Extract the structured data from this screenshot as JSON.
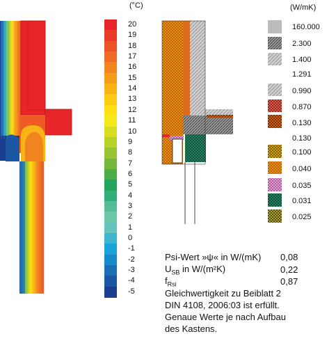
{
  "thermal": {
    "unit": "(°C)",
    "ticks": [
      "20",
      "19",
      "18",
      "17",
      "16",
      "15",
      "14",
      "13",
      "12",
      "11",
      "10",
      "9",
      "8",
      "7",
      "6",
      "5",
      "4",
      "3",
      "2",
      "1",
      "0",
      "-1",
      "-2",
      "-3",
      "-4",
      "-5"
    ],
    "colors": [
      "#e8262a",
      "#ea3b28",
      "#ec5226",
      "#ef6a24",
      "#f28420",
      "#f59c1b",
      "#f8b416",
      "#fbcb12",
      "#fde112",
      "#f2e81a",
      "#d8df22",
      "#b8d22a",
      "#97c532",
      "#73b83a",
      "#4dae48",
      "#1fa65a",
      "#32ad78",
      "#55bc95",
      "#6cc6a8",
      "#66c3bd",
      "#3eb6cf",
      "#1aa3d6",
      "#198ac9",
      "#1b6fb6",
      "#1c57a3",
      "#1b3f8e"
    ]
  },
  "materials": {
    "unit": "(W/mK)",
    "items": [
      {
        "value": "160.000",
        "fill": "#bcbcbc",
        "pattern": "solid"
      },
      {
        "value": "2.300",
        "fill": "#8c8c8c",
        "pattern": "hatch"
      },
      {
        "value": "1.400",
        "fill": "#9a9a9a",
        "pattern": "hatch-light"
      },
      {
        "value": "1.291",
        "fill": "#ffffff",
        "pattern": "none"
      },
      {
        "value": "0.990",
        "fill": "#cfcfcf",
        "pattern": "hatch"
      },
      {
        "value": "0.870",
        "fill": "#e56a5d",
        "pattern": "cross"
      },
      {
        "value": "0.130",
        "fill": "#e06a1c",
        "pattern": "cross"
      },
      {
        "value": "0.130",
        "fill": "#ffffff",
        "pattern": "none"
      },
      {
        "value": "0.100",
        "fill": "#e8b31a",
        "pattern": "grid"
      },
      {
        "value": "0.040",
        "fill": "#f39a1b",
        "pattern": "grid"
      },
      {
        "value": "0.035",
        "fill": "#e7a6d9",
        "pattern": "cross"
      },
      {
        "value": "0.031",
        "fill": "#2f8a6a",
        "pattern": "cross"
      },
      {
        "value": "0.025",
        "fill": "#b9b04a",
        "pattern": "grid"
      }
    ]
  },
  "stats": {
    "psi_label": "Psi-Wert »ψ« in W/(mK)",
    "psi_value": "0,08",
    "usb_label_main": "U",
    "usb_label_sub": "SB",
    "usb_label_rest": " in W/(m²K)",
    "usb_value": "0,22",
    "frsi_main": "f",
    "frsi_sub": "Rsi",
    "frsi_value": "0,87",
    "note_lines": [
      "Gleichwertigkeit zu Beiblatt 2",
      "DIN 4108, 2006:03 ist erfüllt.",
      "Genaue Werte je nach Aufbau",
      "des Kastens."
    ]
  }
}
